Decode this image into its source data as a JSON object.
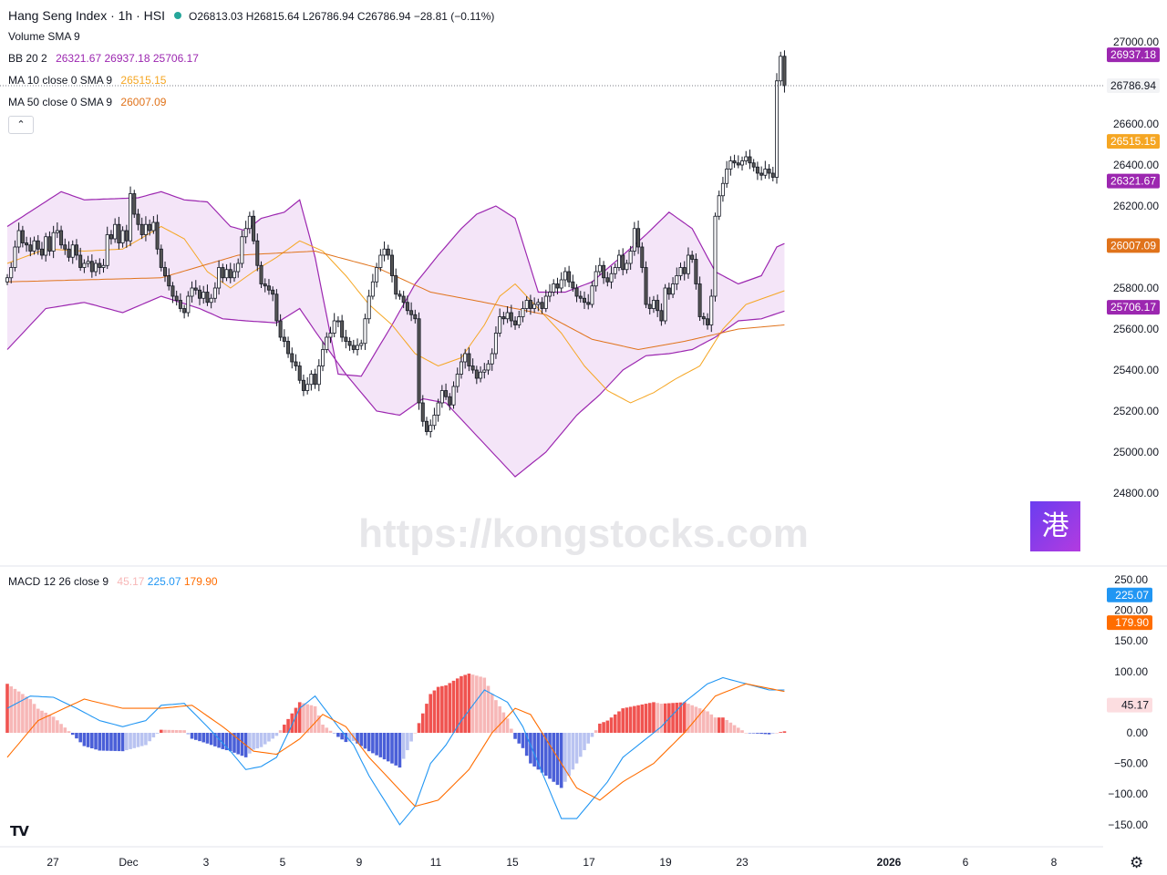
{
  "header": {
    "symbol": "Hang Seng Index · 1h · HSI",
    "ohlc_text": "O26813.03  H26815.64  L26786.94  C26786.94  −28.81 (−0.11%)",
    "status_color": "#26a69a"
  },
  "legends": {
    "volume": {
      "name": "Volume",
      "params": "SMA 9"
    },
    "bb": {
      "name": "BB",
      "params": "20 2",
      "v1": "26321.67",
      "v2": "26937.18",
      "v3": "25706.17"
    },
    "ma10": {
      "name": "MA",
      "params": "10 close 0 SMA 9",
      "value": "26515.15"
    },
    "ma50": {
      "name": "MA",
      "params": "50 close 0 SMA 9",
      "value": "26007.09"
    },
    "macd": {
      "name": "MACD",
      "params": "12 26 close 9",
      "hist": "45.17",
      "macd": "225.07",
      "signal": "179.90"
    }
  },
  "collapse_icon": "chevron-up-icon",
  "watermark": "https://kongstocks.com",
  "brand_glyph": "港",
  "tv_logo": "TV",
  "settings_icon": "gear-icon",
  "colors": {
    "up": "#ffffff",
    "down": "#555555",
    "bb": "#9c27b0",
    "bb_fill": "#f3e2f7",
    "ma10": "#f5a623",
    "ma50": "#e0731b",
    "macd": "#2196f3",
    "signal": "#ff6d00",
    "hist_pos_strong": "#f05350",
    "hist_pos_weak": "#f7b7b7",
    "hist_neg_strong": "#4a5fd8",
    "hist_neg_weak": "#b9c3f1"
  },
  "chart_data": [
    {
      "type": "candlestick",
      "title": "Hang Seng Index · 1h · HSI",
      "ylim": [
        24700,
        27050
      ],
      "y_ticks": [
        "27000.00",
        "26800.00",
        "26600.00",
        "26400.00",
        "26200.00",
        "26000.00",
        "25800.00",
        "25600.00",
        "25400.00",
        "25200.00",
        "25000.00",
        "24800.00"
      ],
      "x_ticks": [
        "27",
        "Dec",
        "3",
        "5",
        "9",
        "11",
        "15",
        "17",
        "19",
        "23",
        "2026",
        "6",
        "8"
      ],
      "price_labels": [
        {
          "value": 26937.18,
          "text": "26937.18",
          "series": "bb_upper"
        },
        {
          "value": 26786.94,
          "text": "26786.94",
          "series": "last"
        },
        {
          "value": 26515.15,
          "text": "26515.15",
          "series": "ma10"
        },
        {
          "value": 26321.67,
          "text": "26321.67",
          "series": "bb_basis"
        },
        {
          "value": 26007.09,
          "text": "26007.09",
          "series": "ma50"
        },
        {
          "value": 25706.17,
          "text": "25706.17",
          "series": "bb_lower"
        }
      ],
      "last_price": 26786.94,
      "candles_close": [
        25850,
        25900,
        26000,
        26080,
        26020,
        26010,
        25980,
        26030,
        25990,
        25960,
        26050,
        25980,
        26070,
        26080,
        26010,
        25990,
        25950,
        26010,
        25960,
        25900,
        25920,
        25930,
        25880,
        25920,
        25900,
        25910,
        26060,
        26040,
        26110,
        26020,
        26080,
        26030,
        26260,
        26160,
        26110,
        26060,
        26110,
        26080,
        26120,
        25990,
        25900,
        25860,
        25810,
        25760,
        25740,
        25700,
        25680,
        25760,
        25800,
        25790,
        25750,
        25780,
        25730,
        25750,
        25800,
        25900,
        25850,
        25890,
        25850,
        25880,
        25920,
        26050,
        26090,
        26150,
        26030,
        25910,
        25820,
        25810,
        25790,
        25770,
        25640,
        25560,
        25540,
        25480,
        25440,
        25420,
        25350,
        25300,
        25330,
        25380,
        25330,
        25420,
        25500,
        25560,
        25580,
        25640,
        25640,
        25560,
        25540,
        25520,
        25500,
        25520,
        25530,
        25650,
        25760,
        25830,
        25900,
        25960,
        25990,
        25960,
        25860,
        25770,
        25760,
        25730,
        25690,
        25670,
        25650,
        25240,
        25150,
        25100,
        25130,
        25180,
        25240,
        25300,
        25270,
        25230,
        25320,
        25380,
        25440,
        25480,
        25420,
        25400,
        25360,
        25390,
        25400,
        25430,
        25480,
        25580,
        25660,
        25650,
        25680,
        25640,
        25620,
        25660,
        25700,
        25740,
        25700,
        25720,
        25730,
        25700,
        25760,
        25780,
        25820,
        25800,
        25840,
        25880,
        25830,
        25800,
        25760,
        25750,
        25730,
        25720,
        25810,
        25880,
        25910,
        25850,
        25830,
        25870,
        25900,
        25960,
        25890,
        25920,
        25980,
        26090,
        26000,
        25900,
        25720,
        25700,
        25740,
        25690,
        25640,
        25800,
        25770,
        25820,
        25860,
        25900,
        25870,
        25960,
        25940,
        25820,
        25660,
        25650,
        25620,
        25760,
        26150,
        26250,
        26310,
        26380,
        26420,
        26410,
        26400,
        26420,
        26440,
        26410,
        26390,
        26360,
        26350,
        26380,
        26360,
        26340,
        26810,
        26930,
        26787
      ],
      "bb_upper_key": [
        [
          0,
          26100
        ],
        [
          14,
          26270
        ],
        [
          20,
          26230
        ],
        [
          34,
          26240
        ],
        [
          40,
          26270
        ],
        [
          46,
          26230
        ],
        [
          52,
          26220
        ],
        [
          58,
          26100
        ],
        [
          62,
          26080
        ],
        [
          66,
          26140
        ],
        [
          72,
          26170
        ],
        [
          76,
          26230
        ],
        [
          80,
          25950
        ],
        [
          86,
          25380
        ],
        [
          92,
          25370
        ],
        [
          100,
          25620
        ],
        [
          106,
          25820
        ],
        [
          112,
          25960
        ],
        [
          118,
          26090
        ],
        [
          122,
          26160
        ],
        [
          127,
          26200
        ],
        [
          132,
          26140
        ],
        [
          138,
          25780
        ],
        [
          145,
          25780
        ],
        [
          152,
          25830
        ],
        [
          160,
          25960
        ],
        [
          166,
          26060
        ],
        [
          172,
          26170
        ],
        [
          178,
          26090
        ],
        [
          184,
          25880
        ],
        [
          190,
          25820
        ],
        [
          196,
          25860
        ],
        [
          200,
          26000
        ],
        [
          206,
          26050
        ],
        [
          214,
          26080
        ],
        [
          222,
          26200
        ],
        [
          232,
          26500
        ],
        [
          236,
          26850
        ],
        [
          240,
          26970
        ]
      ],
      "bb_basis_key": [
        [
          0,
          25820
        ],
        [
          10,
          25900
        ],
        [
          20,
          25940
        ],
        [
          30,
          25960
        ],
        [
          40,
          26000
        ],
        [
          50,
          25960
        ],
        [
          60,
          25860
        ],
        [
          70,
          25800
        ],
        [
          80,
          25760
        ],
        [
          88,
          25640
        ],
        [
          96,
          25560
        ],
        [
          104,
          25620
        ],
        [
          112,
          25760
        ],
        [
          120,
          25720
        ],
        [
          128,
          25580
        ],
        [
          136,
          25500
        ],
        [
          144,
          25530
        ],
        [
          152,
          25620
        ],
        [
          160,
          25700
        ],
        [
          170,
          25760
        ],
        [
          180,
          25790
        ],
        [
          190,
          25800
        ],
        [
          200,
          25800
        ],
        [
          210,
          25830
        ],
        [
          220,
          26000
        ],
        [
          230,
          26160
        ],
        [
          240,
          26320
        ]
      ],
      "bb_lower_key": [
        [
          0,
          25500
        ],
        [
          10,
          25700
        ],
        [
          20,
          25730
        ],
        [
          30,
          25680
        ],
        [
          40,
          25760
        ],
        [
          50,
          25700
        ],
        [
          56,
          25650
        ],
        [
          62,
          25640
        ],
        [
          70,
          25630
        ],
        [
          76,
          25700
        ],
        [
          80,
          25590
        ],
        [
          88,
          25380
        ],
        [
          96,
          25200
        ],
        [
          102,
          25180
        ],
        [
          108,
          25260
        ],
        [
          114,
          25240
        ],
        [
          120,
          25120
        ],
        [
          126,
          25000
        ],
        [
          132,
          24880
        ],
        [
          140,
          25000
        ],
        [
          148,
          25180
        ],
        [
          154,
          25280
        ],
        [
          160,
          25400
        ],
        [
          166,
          25470
        ],
        [
          172,
          25480
        ],
        [
          178,
          25500
        ],
        [
          184,
          25560
        ],
        [
          190,
          25640
        ],
        [
          196,
          25650
        ],
        [
          204,
          25700
        ],
        [
          210,
          25630
        ],
        [
          216,
          25620
        ],
        [
          220,
          25540
        ],
        [
          226,
          25440
        ],
        [
          232,
          25480
        ],
        [
          240,
          25706
        ]
      ],
      "ma10_key": [
        [
          0,
          25920
        ],
        [
          10,
          25990
        ],
        [
          20,
          25980
        ],
        [
          30,
          25990
        ],
        [
          40,
          26100
        ],
        [
          46,
          26040
        ],
        [
          52,
          25880
        ],
        [
          58,
          25800
        ],
        [
          64,
          25880
        ],
        [
          70,
          25950
        ],
        [
          76,
          26030
        ],
        [
          82,
          25980
        ],
        [
          88,
          25860
        ],
        [
          94,
          25720
        ],
        [
          100,
          25620
        ],
        [
          106,
          25480
        ],
        [
          112,
          25420
        ],
        [
          118,
          25460
        ],
        [
          124,
          25620
        ],
        [
          128,
          25760
        ],
        [
          132,
          25820
        ],
        [
          138,
          25700
        ],
        [
          144,
          25580
        ],
        [
          150,
          25420
        ],
        [
          156,
          25300
        ],
        [
          162,
          25240
        ],
        [
          168,
          25290
        ],
        [
          174,
          25360
        ],
        [
          180,
          25420
        ],
        [
          186,
          25600
        ],
        [
          192,
          25720
        ],
        [
          198,
          25760
        ],
        [
          204,
          25800
        ],
        [
          210,
          25850
        ],
        [
          216,
          25870
        ],
        [
          220,
          25810
        ],
        [
          224,
          25760
        ],
        [
          228,
          25860
        ],
        [
          232,
          26060
        ],
        [
          236,
          26300
        ],
        [
          240,
          26515
        ]
      ],
      "ma50_key": [
        [
          0,
          25830
        ],
        [
          20,
          25840
        ],
        [
          40,
          25850
        ],
        [
          60,
          25960
        ],
        [
          80,
          25980
        ],
        [
          96,
          25900
        ],
        [
          110,
          25780
        ],
        [
          124,
          25730
        ],
        [
          140,
          25670
        ],
        [
          152,
          25550
        ],
        [
          164,
          25500
        ],
        [
          176,
          25540
        ],
        [
          190,
          25600
        ],
        [
          202,
          25620
        ],
        [
          214,
          25660
        ],
        [
          226,
          25740
        ],
        [
          240,
          26007
        ]
      ]
    },
    {
      "type": "macd",
      "title": "MACD 12 26 close 9",
      "ylim": [
        -170,
        260
      ],
      "y_ticks": [
        "250.00",
        "200.00",
        "150.00",
        "100.00",
        "50.00",
        "0.00",
        "−50.00",
        "−100.00",
        "−150.00"
      ],
      "value_labels": [
        {
          "value": 225.07,
          "text": "225.07",
          "series": "macd"
        },
        {
          "value": 179.9,
          "text": "179.90",
          "series": "signal"
        },
        {
          "value": 45.17,
          "text": "45.17",
          "series": "histogram"
        }
      ],
      "macd_key": [
        [
          0,
          40
        ],
        [
          6,
          60
        ],
        [
          12,
          58
        ],
        [
          18,
          40
        ],
        [
          24,
          20
        ],
        [
          30,
          10
        ],
        [
          36,
          20
        ],
        [
          40,
          45
        ],
        [
          46,
          48
        ],
        [
          52,
          10
        ],
        [
          58,
          -30
        ],
        [
          62,
          -60
        ],
        [
          66,
          -55
        ],
        [
          70,
          -40
        ],
        [
          76,
          40
        ],
        [
          80,
          60
        ],
        [
          86,
          10
        ],
        [
          90,
          -20
        ],
        [
          94,
          -70
        ],
        [
          98,
          -110
        ],
        [
          102,
          -150
        ],
        [
          106,
          -120
        ],
        [
          110,
          -50
        ],
        [
          114,
          -20
        ],
        [
          118,
          20
        ],
        [
          124,
          70
        ],
        [
          130,
          50
        ],
        [
          134,
          10
        ],
        [
          140,
          -80
        ],
        [
          144,
          -140
        ],
        [
          148,
          -140
        ],
        [
          152,
          -110
        ],
        [
          156,
          -80
        ],
        [
          160,
          -40
        ],
        [
          164,
          -20
        ],
        [
          170,
          10
        ],
        [
          176,
          50
        ],
        [
          182,
          80
        ],
        [
          186,
          90
        ],
        [
          192,
          80
        ],
        [
          198,
          70
        ],
        [
          204,
          70
        ],
        [
          210,
          60
        ],
        [
          216,
          30
        ],
        [
          222,
          40
        ],
        [
          226,
          120
        ],
        [
          230,
          160
        ],
        [
          234,
          150
        ],
        [
          238,
          200
        ],
        [
          241,
          225
        ]
      ],
      "signal_key": [
        [
          0,
          -40
        ],
        [
          8,
          20
        ],
        [
          20,
          55
        ],
        [
          30,
          40
        ],
        [
          40,
          40
        ],
        [
          48,
          45
        ],
        [
          56,
          10
        ],
        [
          64,
          -30
        ],
        [
          70,
          -35
        ],
        [
          76,
          -10
        ],
        [
          82,
          30
        ],
        [
          88,
          10
        ],
        [
          94,
          -40
        ],
        [
          100,
          -80
        ],
        [
          106,
          -120
        ],
        [
          112,
          -110
        ],
        [
          120,
          -60
        ],
        [
          126,
          0
        ],
        [
          132,
          40
        ],
        [
          136,
          30
        ],
        [
          142,
          -30
        ],
        [
          148,
          -90
        ],
        [
          154,
          -110
        ],
        [
          160,
          -80
        ],
        [
          168,
          -50
        ],
        [
          176,
          0
        ],
        [
          184,
          60
        ],
        [
          192,
          80
        ],
        [
          200,
          70
        ],
        [
          208,
          60
        ],
        [
          216,
          50
        ],
        [
          222,
          40
        ],
        [
          226,
          60
        ],
        [
          232,
          120
        ],
        [
          238,
          150
        ],
        [
          241,
          180
        ]
      ]
    }
  ]
}
